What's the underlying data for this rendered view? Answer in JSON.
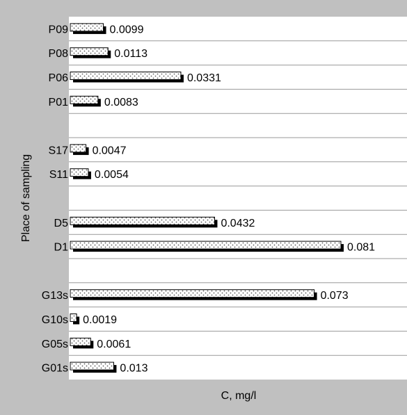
{
  "chart_data": {
    "type": "bar",
    "orientation": "horizontal",
    "xlabel": "C, mg/l",
    "ylabel": "Place of sampling",
    "xlim": [
      0,
      0.081
    ],
    "grid": "horizontal lines",
    "legend": "none",
    "bar_pattern": "dotted hatch with black drop shadow",
    "colors": {
      "outer_background": "#c0c0c0",
      "plot_background": "#ffffff",
      "bar_fill": "#ffffff",
      "bar_dots": "#555555",
      "bar_shadow": "#000000",
      "gridline": "#999999"
    },
    "categories": [
      "P09",
      "P08",
      "P06",
      "P01",
      "",
      "S17",
      "S11",
      "",
      "D5",
      "D1",
      "",
      "G13s",
      "G10s",
      "G05s",
      "G01s"
    ],
    "values": [
      0.0099,
      0.0113,
      0.0331,
      0.0083,
      null,
      0.0047,
      0.0054,
      null,
      0.0432,
      0.081,
      null,
      0.073,
      0.0019,
      0.0061,
      0.013
    ],
    "value_labels": [
      "0.0099",
      "0.0113",
      "0.0331",
      "0.0083",
      "",
      "0.0047",
      "0.0054",
      "",
      "0.0432",
      "0.081",
      "",
      "0.073",
      "0.0019",
      "0.0061",
      "0.013"
    ]
  }
}
